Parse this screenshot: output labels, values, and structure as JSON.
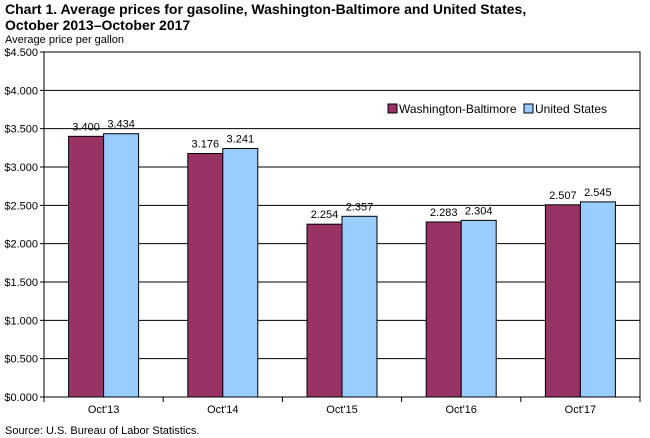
{
  "title_line1": "Chart 1. Average prices for gasoline, Washington-Baltimore and United States,",
  "title_line2": "October 2013–October 2017",
  "source": "Source: U.S. Bureau of Labor Statistics.",
  "chart_data": {
    "type": "bar",
    "ylabel": "Average price per gallon",
    "xlabel": "",
    "categories": [
      "Oct'13",
      "Oct'14",
      "Oct'15",
      "Oct'16",
      "Oct'17"
    ],
    "series": [
      {
        "name": "Washington-Baltimore",
        "color": "#993366",
        "values": [
          3.4,
          3.176,
          2.254,
          2.283,
          2.507
        ],
        "labels": [
          "3.400",
          "3.176",
          "2.254",
          "2.283",
          "2.507"
        ]
      },
      {
        "name": "United States",
        "color": "#99CCFF",
        "values": [
          3.434,
          3.241,
          2.357,
          2.304,
          2.545
        ],
        "labels": [
          "3.434",
          "3.241",
          "2.357",
          "2.304",
          "2.545"
        ]
      }
    ],
    "ylim": [
      0,
      4.5
    ],
    "yticks": [
      0,
      0.5,
      1,
      1.5,
      2,
      2.5,
      3,
      3.5,
      4,
      4.5
    ],
    "ytick_labels": [
      "$0.000",
      "$0.500",
      "$1.000",
      "$1.500",
      "$2.000",
      "$2.500",
      "$3.000",
      "$3.500",
      "$4.000",
      "$4.500"
    ],
    "grid": true,
    "legend_position": "top-right"
  }
}
